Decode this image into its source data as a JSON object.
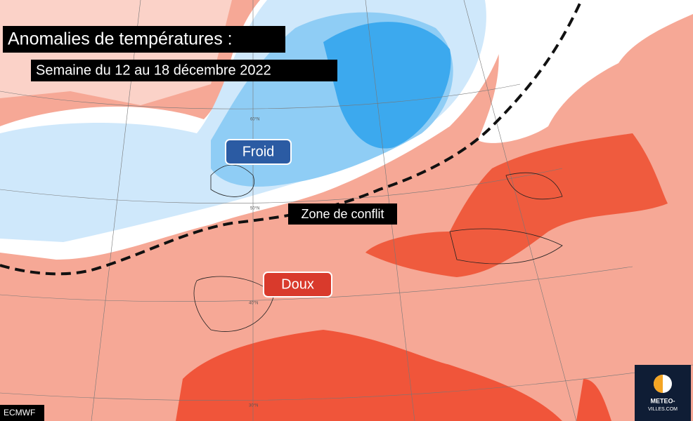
{
  "header": {
    "title": "Anomalies de températures :",
    "subtitle": "Semaine du 12 au 18 décembre 2022"
  },
  "map": {
    "labels": {
      "cold": "Froid",
      "warm": "Doux",
      "conflict": "Zone de conflit"
    },
    "latitudes": [
      "60°N",
      "50°N",
      "40°N",
      "30°N"
    ]
  },
  "footer": {
    "source": "ECMWF",
    "logo": {
      "line1": "METEO-",
      "line2": "VILLES.COM"
    }
  }
}
